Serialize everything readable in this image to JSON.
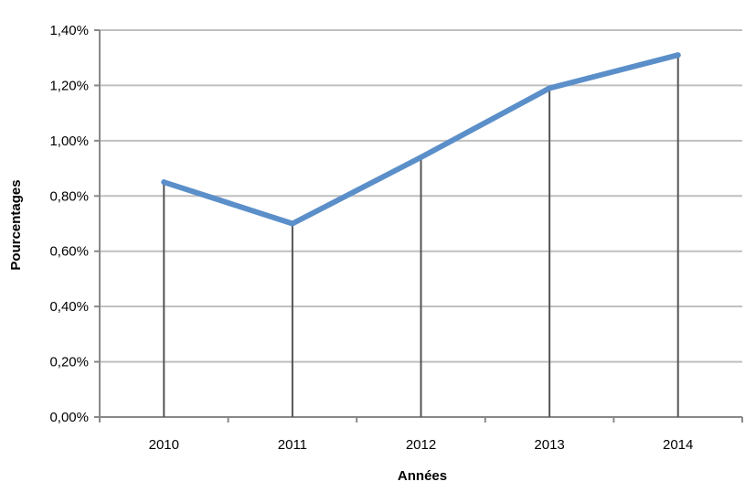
{
  "chart_data": {
    "type": "line",
    "title": "",
    "xlabel": "Années",
    "ylabel": "Pourcentages",
    "categories": [
      "2010",
      "2011",
      "2012",
      "2013",
      "2014"
    ],
    "series": [
      {
        "values": [
          0.85,
          0.7,
          0.94,
          1.19,
          1.31
        ],
        "color": "#5b8fc9"
      }
    ],
    "ylim": [
      0,
      1.4
    ],
    "ytick_values": [
      0,
      0.2,
      0.4,
      0.6,
      0.8,
      1.0,
      1.2,
      1.4
    ],
    "ytick_labels": [
      "0,00%",
      "0,20%",
      "0,40%",
      "0,60%",
      "0,80%",
      "1,00%",
      "1,20%",
      "1,40%"
    ],
    "grid": true,
    "drop_lines": true,
    "legend": "none",
    "colors": {
      "grid": "#bfbfbf",
      "drop_line": "#555555",
      "axis": "#888888"
    }
  }
}
